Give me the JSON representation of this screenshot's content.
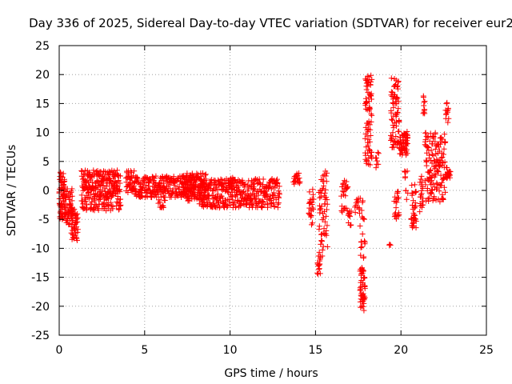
{
  "chart_data": {
    "type": "scatter",
    "title": "Day 336 of 2025, Sidereal Day-to-day VTEC variation (SDTVAR) for receiver eur2",
    "xlabel": "GPS time / hours",
    "ylabel": "SDTVAR / TECUs",
    "xlim": [
      0,
      25
    ],
    "ylim": [
      -25,
      25
    ],
    "x_ticks": [
      0,
      5,
      10,
      15,
      20,
      25
    ],
    "y_ticks": [
      -25,
      -20,
      -15,
      -10,
      -5,
      0,
      5,
      10,
      15,
      20,
      25
    ],
    "grid": true,
    "marker": "+",
    "color": "#ff0000",
    "segments": [
      {
        "x0": 0.0,
        "x1": 0.35,
        "ymin": -5,
        "ymax": 3.3,
        "n": 70
      },
      {
        "x0": 0.35,
        "x1": 0.8,
        "ymin": -6,
        "ymax": 0.5,
        "n": 50
      },
      {
        "x0": 0.7,
        "x1": 1.1,
        "ymin": -9,
        "ymax": -3,
        "n": 45
      },
      {
        "x0": 1.3,
        "x1": 3.6,
        "ymin": -3.5,
        "ymax": 3.5,
        "n": 280
      },
      {
        "x0": 3.9,
        "x1": 4.4,
        "ymin": -0.5,
        "ymax": 3.4,
        "n": 40
      },
      {
        "x0": 4.4,
        "x1": 8.0,
        "ymin": -1.2,
        "ymax": 2.5,
        "n": 260
      },
      {
        "x0": 5.8,
        "x1": 6.2,
        "ymin": -3,
        "ymax": -1.5,
        "n": 12
      },
      {
        "x0": 7.2,
        "x1": 8.6,
        "ymin": -2,
        "ymax": 3,
        "n": 110
      },
      {
        "x0": 8.2,
        "x1": 9.8,
        "ymin": -3,
        "ymax": 2,
        "n": 140
      },
      {
        "x0": 9.9,
        "x1": 10.2,
        "ymin": 1,
        "ymax": 2.6,
        "n": 12
      },
      {
        "x0": 9.8,
        "x1": 11.5,
        "ymin": -3,
        "ymax": 2,
        "n": 140
      },
      {
        "x0": 11.5,
        "x1": 12.9,
        "ymin": -3,
        "ymax": 2,
        "n": 110
      },
      {
        "x0": 13.7,
        "x1": 14.1,
        "ymin": 1,
        "ymax": 3,
        "n": 20
      },
      {
        "x0": 14.6,
        "x1": 14.9,
        "ymin": -6.5,
        "ymax": 0.5,
        "n": 25
      },
      {
        "x0": 15.1,
        "x1": 15.3,
        "ymin": -14.5,
        "ymax": -11,
        "n": 15
      },
      {
        "x0": 15.2,
        "x1": 15.7,
        "ymin": -11.5,
        "ymax": 3.5,
        "n": 60
      },
      {
        "x0": 16.5,
        "x1": 16.9,
        "ymin": -4,
        "ymax": 2.5,
        "n": 25
      },
      {
        "x0": 16.9,
        "x1": 17.1,
        "ymin": -6.5,
        "ymax": -3.5,
        "n": 12
      },
      {
        "x0": 17.3,
        "x1": 17.6,
        "ymin": -4,
        "ymax": -1,
        "n": 12
      },
      {
        "x0": 17.6,
        "x1": 17.9,
        "ymin": -21,
        "ymax": -13,
        "n": 50
      },
      {
        "x0": 17.6,
        "x1": 17.9,
        "ymin": -12,
        "ymax": -1,
        "n": 20
      },
      {
        "x0": 17.9,
        "x1": 18.3,
        "ymin": 4,
        "ymax": 20,
        "n": 80
      },
      {
        "x0": 18.5,
        "x1": 18.7,
        "ymin": 3,
        "ymax": 7,
        "n": 8
      },
      {
        "x0": 19.3,
        "x1": 19.4,
        "ymin": -10.5,
        "ymax": -9,
        "n": 3
      },
      {
        "x0": 19.4,
        "x1": 19.9,
        "ymin": 7,
        "ymax": 20,
        "n": 70
      },
      {
        "x0": 19.6,
        "x1": 19.9,
        "ymin": -5,
        "ymax": 0,
        "n": 20
      },
      {
        "x0": 19.9,
        "x1": 20.4,
        "ymin": 6,
        "ymax": 10,
        "n": 50
      },
      {
        "x0": 20.2,
        "x1": 20.4,
        "ymin": -2,
        "ymax": 13,
        "n": 18
      },
      {
        "x0": 20.6,
        "x1": 20.9,
        "ymin": -6.5,
        "ymax": 1,
        "n": 35
      },
      {
        "x0": 21.1,
        "x1": 21.3,
        "ymin": -4,
        "ymax": 2.5,
        "n": 20
      },
      {
        "x0": 21.3,
        "x1": 21.4,
        "ymin": 13,
        "ymax": 16.5,
        "n": 10
      },
      {
        "x0": 21.4,
        "x1": 22.6,
        "ymin": -2,
        "ymax": 10,
        "n": 150
      },
      {
        "x0": 22.6,
        "x1": 22.9,
        "ymin": 2,
        "ymax": 4,
        "n": 20
      },
      {
        "x0": 22.6,
        "x1": 22.8,
        "ymin": 11.5,
        "ymax": 15.5,
        "n": 12
      }
    ]
  }
}
